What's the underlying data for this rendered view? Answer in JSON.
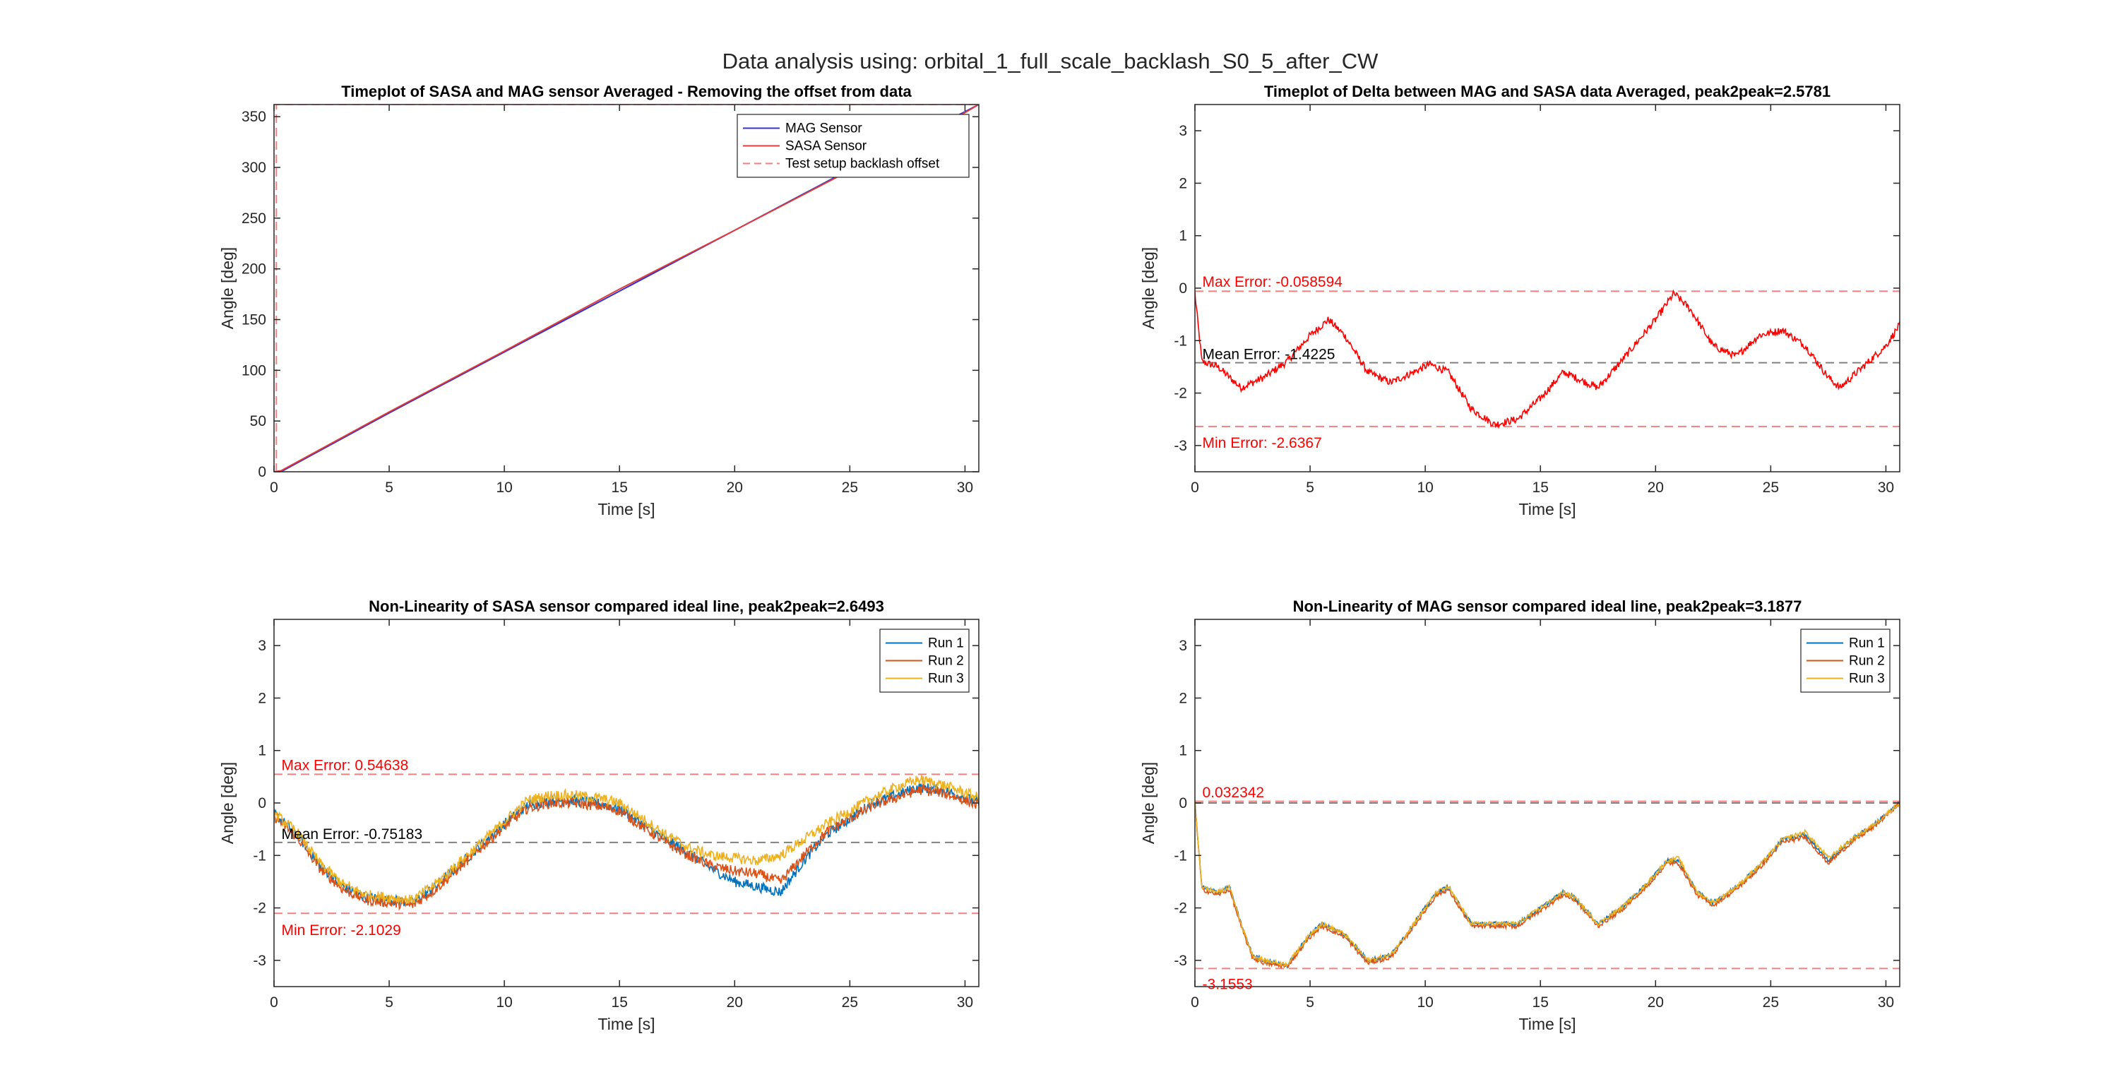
{
  "figure": {
    "suptitle": "Data analysis using: orbital_1_full_scale_backlash_S0_5_after_CW"
  },
  "colors": {
    "mag": "#3333cc",
    "sasa": "#e03c3c",
    "offset": "#f08080",
    "delta": "#ff0000",
    "mean_line": "#808080",
    "run1": "#0072bd",
    "run2": "#d95319",
    "run3": "#edb120",
    "annot_red": "#ff0000",
    "annot_black": "#000000"
  },
  "chart_data": [
    {
      "id": "p1",
      "type": "line",
      "title": "Timeplot of SASA and MAG sensor Averaged - Removing the offset from data",
      "xlabel": "Time [s]",
      "ylabel": "Angle [deg]",
      "xlim": [
        0,
        30.6
      ],
      "ylim": [
        0,
        362
      ],
      "xticks": [
        0,
        5,
        10,
        15,
        20,
        25,
        30
      ],
      "yticks": [
        0,
        50,
        100,
        150,
        200,
        250,
        300,
        350
      ],
      "grid": false,
      "legend": {
        "position": "top-right",
        "entries": [
          "MAG Sensor",
          "SASA Sensor",
          "Test setup backlash offset"
        ]
      },
      "series": [
        {
          "name": "MAG Sensor",
          "color": "#3333cc",
          "style": "solid",
          "x": [
            0,
            0.3,
            5,
            10,
            15,
            20,
            25,
            30,
            30.6
          ],
          "y": [
            0,
            0,
            58,
            118,
            178,
            238,
            298,
            355,
            362
          ]
        },
        {
          "name": "SASA Sensor",
          "color": "#e03c3c",
          "style": "solid",
          "x": [
            0,
            0.3,
            5,
            10,
            15,
            20,
            25,
            30,
            30.6
          ],
          "y": [
            0,
            1,
            59,
            119,
            180,
            238,
            297,
            354,
            362
          ]
        },
        {
          "name": "Test setup backlash offset",
          "color": "#f08080",
          "style": "dashed",
          "x": [
            0.1,
            0.1,
            30.6
          ],
          "y": [
            0,
            362,
            362
          ]
        }
      ],
      "hlines": [],
      "annotations": []
    },
    {
      "id": "p2",
      "type": "line",
      "title": "Timeplot of Delta between MAG and SASA data Averaged, peak2peak=2.5781",
      "xlabel": "Time [s]",
      "ylabel": "Angle [deg]",
      "xlim": [
        0,
        30.6
      ],
      "ylim": [
        -3.5,
        3.5
      ],
      "xticks": [
        0,
        5,
        10,
        15,
        20,
        25,
        30
      ],
      "yticks": [
        -3,
        -2,
        -1,
        0,
        1,
        2,
        3
      ],
      "grid": false,
      "series": [
        {
          "name": "Delta",
          "color": "#ff0000",
          "style": "noisy",
          "noise": 0.07,
          "x": [
            0,
            0.3,
            1,
            2,
            3,
            4,
            5,
            5.8,
            6.5,
            7.5,
            8.5,
            9.5,
            10.2,
            11,
            12,
            13,
            14,
            15,
            16,
            16.5,
            17.5,
            18.5,
            20,
            20.8,
            21.5,
            22.5,
            23.5,
            24.5,
            25.5,
            26.5,
            27.5,
            28,
            29,
            30,
            30.6
          ],
          "y": [
            -0.1,
            -1.4,
            -1.5,
            -1.9,
            -1.7,
            -1.4,
            -0.9,
            -0.6,
            -0.9,
            -1.6,
            -1.8,
            -1.6,
            -1.45,
            -1.6,
            -2.3,
            -2.6,
            -2.5,
            -2.1,
            -1.6,
            -1.7,
            -1.9,
            -1.4,
            -0.6,
            -0.1,
            -0.4,
            -1.1,
            -1.3,
            -0.9,
            -0.8,
            -1.1,
            -1.7,
            -1.9,
            -1.5,
            -1.1,
            -0.7
          ]
        }
      ],
      "hlines": [
        {
          "y": -0.058594,
          "color": "#f08080",
          "style": "dashed"
        },
        {
          "y": -1.4225,
          "color": "#808080",
          "style": "dashed"
        },
        {
          "y": -2.6367,
          "color": "#f08080",
          "style": "dashed"
        }
      ],
      "annotations": [
        {
          "text": "Max Error: -0.058594",
          "x": 0.2,
          "y": 0.12,
          "color": "#ff0000"
        },
        {
          "text": "Mean Error: -1.4225",
          "x": 0.2,
          "y": -1.26,
          "color": "#000000"
        },
        {
          "text": "Min Error: -2.6367",
          "x": 0.2,
          "y": -2.95,
          "color": "#ff0000"
        }
      ]
    },
    {
      "id": "p3",
      "type": "line",
      "title": "Non-Linearity of SASA sensor compared ideal line, peak2peak=2.6493",
      "xlabel": "Time [s]",
      "ylabel": "Angle [deg]",
      "xlim": [
        0,
        30.6
      ],
      "ylim": [
        -3.5,
        3.5
      ],
      "xticks": [
        0,
        5,
        10,
        15,
        20,
        25,
        30
      ],
      "yticks": [
        -3,
        -2,
        -1,
        0,
        1,
        2,
        3
      ],
      "grid": false,
      "legend": {
        "position": "top-right",
        "entries": [
          "Run 1",
          "Run 2",
          "Run 3"
        ]
      },
      "series": [
        {
          "name": "Run 1",
          "color": "#0072bd",
          "style": "noisy",
          "noise": 0.1,
          "x": [
            0,
            1,
            2,
            3,
            4,
            5,
            6,
            7,
            8,
            9,
            10,
            11,
            12,
            13,
            14,
            15,
            16,
            17,
            18,
            19,
            20,
            21,
            22,
            23,
            24,
            25,
            26,
            27,
            28,
            29,
            30,
            30.6
          ],
          "y": [
            -0.2,
            -0.6,
            -1.2,
            -1.6,
            -1.8,
            -1.85,
            -1.9,
            -1.6,
            -1.2,
            -0.8,
            -0.4,
            -0.05,
            0.05,
            0.05,
            0.0,
            -0.1,
            -0.4,
            -0.7,
            -0.95,
            -1.25,
            -1.5,
            -1.6,
            -1.7,
            -1.1,
            -0.6,
            -0.3,
            0.0,
            0.15,
            0.3,
            0.25,
            0.1,
            0.0
          ]
        },
        {
          "name": "Run 2",
          "color": "#d95319",
          "style": "noisy",
          "noise": 0.1,
          "x": [
            0,
            1,
            2,
            3,
            4,
            5,
            6,
            7,
            8,
            9,
            10,
            11,
            12,
            13,
            14,
            15,
            16,
            17,
            18,
            19,
            20,
            21,
            22,
            23,
            24,
            25,
            26,
            27,
            28,
            29,
            30,
            30.6
          ],
          "y": [
            -0.25,
            -0.65,
            -1.25,
            -1.65,
            -1.85,
            -1.9,
            -1.95,
            -1.65,
            -1.25,
            -0.85,
            -0.45,
            -0.1,
            0.0,
            0.0,
            -0.05,
            -0.15,
            -0.45,
            -0.75,
            -1.0,
            -1.2,
            -1.3,
            -1.35,
            -1.5,
            -1.0,
            -0.55,
            -0.3,
            -0.05,
            0.1,
            0.25,
            0.2,
            0.05,
            -0.05
          ]
        },
        {
          "name": "Run 3",
          "color": "#edb120",
          "style": "noisy",
          "noise": 0.1,
          "x": [
            0,
            1,
            2,
            3,
            4,
            5,
            6,
            7,
            8,
            9,
            10,
            11,
            12,
            13,
            14,
            15,
            16,
            17,
            18,
            19,
            20,
            21,
            22,
            23,
            24,
            25,
            26,
            27,
            28,
            29,
            30,
            30.6
          ],
          "y": [
            -0.2,
            -0.55,
            -1.15,
            -1.55,
            -1.75,
            -1.8,
            -1.85,
            -1.55,
            -1.15,
            -0.75,
            -0.35,
            0.05,
            0.15,
            0.15,
            0.1,
            0.0,
            -0.3,
            -0.6,
            -0.85,
            -1.0,
            -1.05,
            -1.1,
            -1.0,
            -0.7,
            -0.4,
            -0.15,
            0.1,
            0.3,
            0.45,
            0.35,
            0.2,
            0.1
          ]
        }
      ],
      "hlines": [
        {
          "y": 0.54638,
          "color": "#f08080",
          "style": "dashed"
        },
        {
          "y": -0.75183,
          "color": "#808080",
          "style": "dashed"
        },
        {
          "y": -2.1029,
          "color": "#f08080",
          "style": "dashed"
        }
      ],
      "annotations": [
        {
          "text": "Max Error: 0.54638",
          "x": 0.2,
          "y": 0.72,
          "color": "#ff0000"
        },
        {
          "text": "Mean Error: -0.75183",
          "x": 0.2,
          "y": -0.59,
          "color": "#000000"
        },
        {
          "text": "Min Error: -2.1029",
          "x": 0.2,
          "y": -2.42,
          "color": "#ff0000"
        }
      ]
    },
    {
      "id": "p4",
      "type": "line",
      "title": "Non-Linearity of MAG sensor compared ideal line, peak2peak=3.1877",
      "xlabel": "Time [s]",
      "ylabel": "Angle [deg]",
      "xlim": [
        0,
        30.6
      ],
      "ylim": [
        -3.5,
        3.5
      ],
      "xticks": [
        0,
        5,
        10,
        15,
        20,
        25,
        30
      ],
      "yticks": [
        -3,
        -2,
        -1,
        0,
        1,
        2,
        3
      ],
      "grid": false,
      "legend": {
        "position": "top-right",
        "entries": [
          "Run 1",
          "Run 2",
          "Run 3"
        ]
      },
      "series": [
        {
          "name": "Run 1",
          "color": "#0072bd",
          "style": "noisy",
          "noise": 0.04,
          "x": [
            0,
            0.3,
            1,
            1.5,
            2,
            2.5,
            3,
            4,
            5,
            5.5,
            6.5,
            7.5,
            8.5,
            9.5,
            10.5,
            11,
            12,
            13,
            14,
            15,
            16,
            16.5,
            17.5,
            18.5,
            19.5,
            20.5,
            21,
            21.8,
            22.5,
            23.5,
            24.5,
            25.5,
            26.5,
            27.5,
            28.5,
            29.5,
            30.6
          ],
          "y": [
            0.0,
            -1.6,
            -1.7,
            -1.6,
            -2.3,
            -2.9,
            -3.0,
            -3.1,
            -2.5,
            -2.3,
            -2.5,
            -3.0,
            -2.9,
            -2.3,
            -1.7,
            -1.6,
            -2.3,
            -2.3,
            -2.3,
            -2.0,
            -1.7,
            -1.8,
            -2.3,
            -2.0,
            -1.6,
            -1.1,
            -1.1,
            -1.7,
            -1.9,
            -1.6,
            -1.2,
            -0.7,
            -0.6,
            -1.1,
            -0.7,
            -0.4,
            0.0
          ]
        },
        {
          "name": "Run 2",
          "color": "#d95319",
          "style": "noisy",
          "noise": 0.04,
          "x": [
            0,
            0.3,
            1,
            1.5,
            2,
            2.5,
            3,
            4,
            5,
            5.5,
            6.5,
            7.5,
            8.5,
            9.5,
            10.5,
            11,
            12,
            13,
            14,
            15,
            16,
            16.5,
            17.5,
            18.5,
            19.5,
            20.5,
            21,
            21.8,
            22.5,
            23.5,
            24.5,
            25.5,
            26.5,
            27.5,
            28.5,
            29.5,
            30.6
          ],
          "y": [
            0.0,
            -1.65,
            -1.75,
            -1.65,
            -2.35,
            -2.95,
            -3.05,
            -3.12,
            -2.55,
            -2.35,
            -2.55,
            -3.05,
            -2.95,
            -2.35,
            -1.75,
            -1.65,
            -2.35,
            -2.35,
            -2.35,
            -2.05,
            -1.75,
            -1.85,
            -2.35,
            -2.05,
            -1.65,
            -1.15,
            -1.15,
            -1.75,
            -1.95,
            -1.65,
            -1.25,
            -0.75,
            -0.65,
            -1.15,
            -0.75,
            -0.45,
            0.0
          ]
        },
        {
          "name": "Run 3",
          "color": "#edb120",
          "style": "noisy",
          "noise": 0.04,
          "x": [
            0,
            0.3,
            1,
            1.5,
            2,
            2.5,
            3,
            4,
            5,
            5.5,
            6.5,
            7.5,
            8.5,
            9.5,
            10.5,
            11,
            12,
            13,
            14,
            15,
            16,
            16.5,
            17.5,
            18.5,
            19.5,
            20.5,
            21,
            21.8,
            22.5,
            23.5,
            24.5,
            25.5,
            26.5,
            27.5,
            28.5,
            29.5,
            30.6
          ],
          "y": [
            0.0,
            -1.6,
            -1.7,
            -1.6,
            -2.3,
            -2.9,
            -3.0,
            -3.08,
            -2.5,
            -2.3,
            -2.5,
            -3.0,
            -2.9,
            -2.3,
            -1.7,
            -1.6,
            -2.3,
            -2.3,
            -2.3,
            -2.0,
            -1.7,
            -1.8,
            -2.3,
            -2.0,
            -1.6,
            -1.1,
            -1.05,
            -1.7,
            -1.9,
            -1.6,
            -1.2,
            -0.7,
            -0.55,
            -1.05,
            -0.7,
            -0.4,
            0.0
          ]
        }
      ],
      "hlines": [
        {
          "y": 0.032342,
          "color": "#f08080",
          "style": "dashed"
        },
        {
          "y": 0.0,
          "color": "#808080",
          "style": "dashed"
        },
        {
          "y": -3.1553,
          "color": "#f08080",
          "style": "dashed"
        }
      ],
      "annotations": [
        {
          "text": "0.032342",
          "x": 0.2,
          "y": 0.2,
          "color": "#ff0000"
        },
        {
          "text": "-3.1553",
          "x": 0.2,
          "y": -3.45,
          "color": "#ff0000"
        }
      ]
    }
  ]
}
